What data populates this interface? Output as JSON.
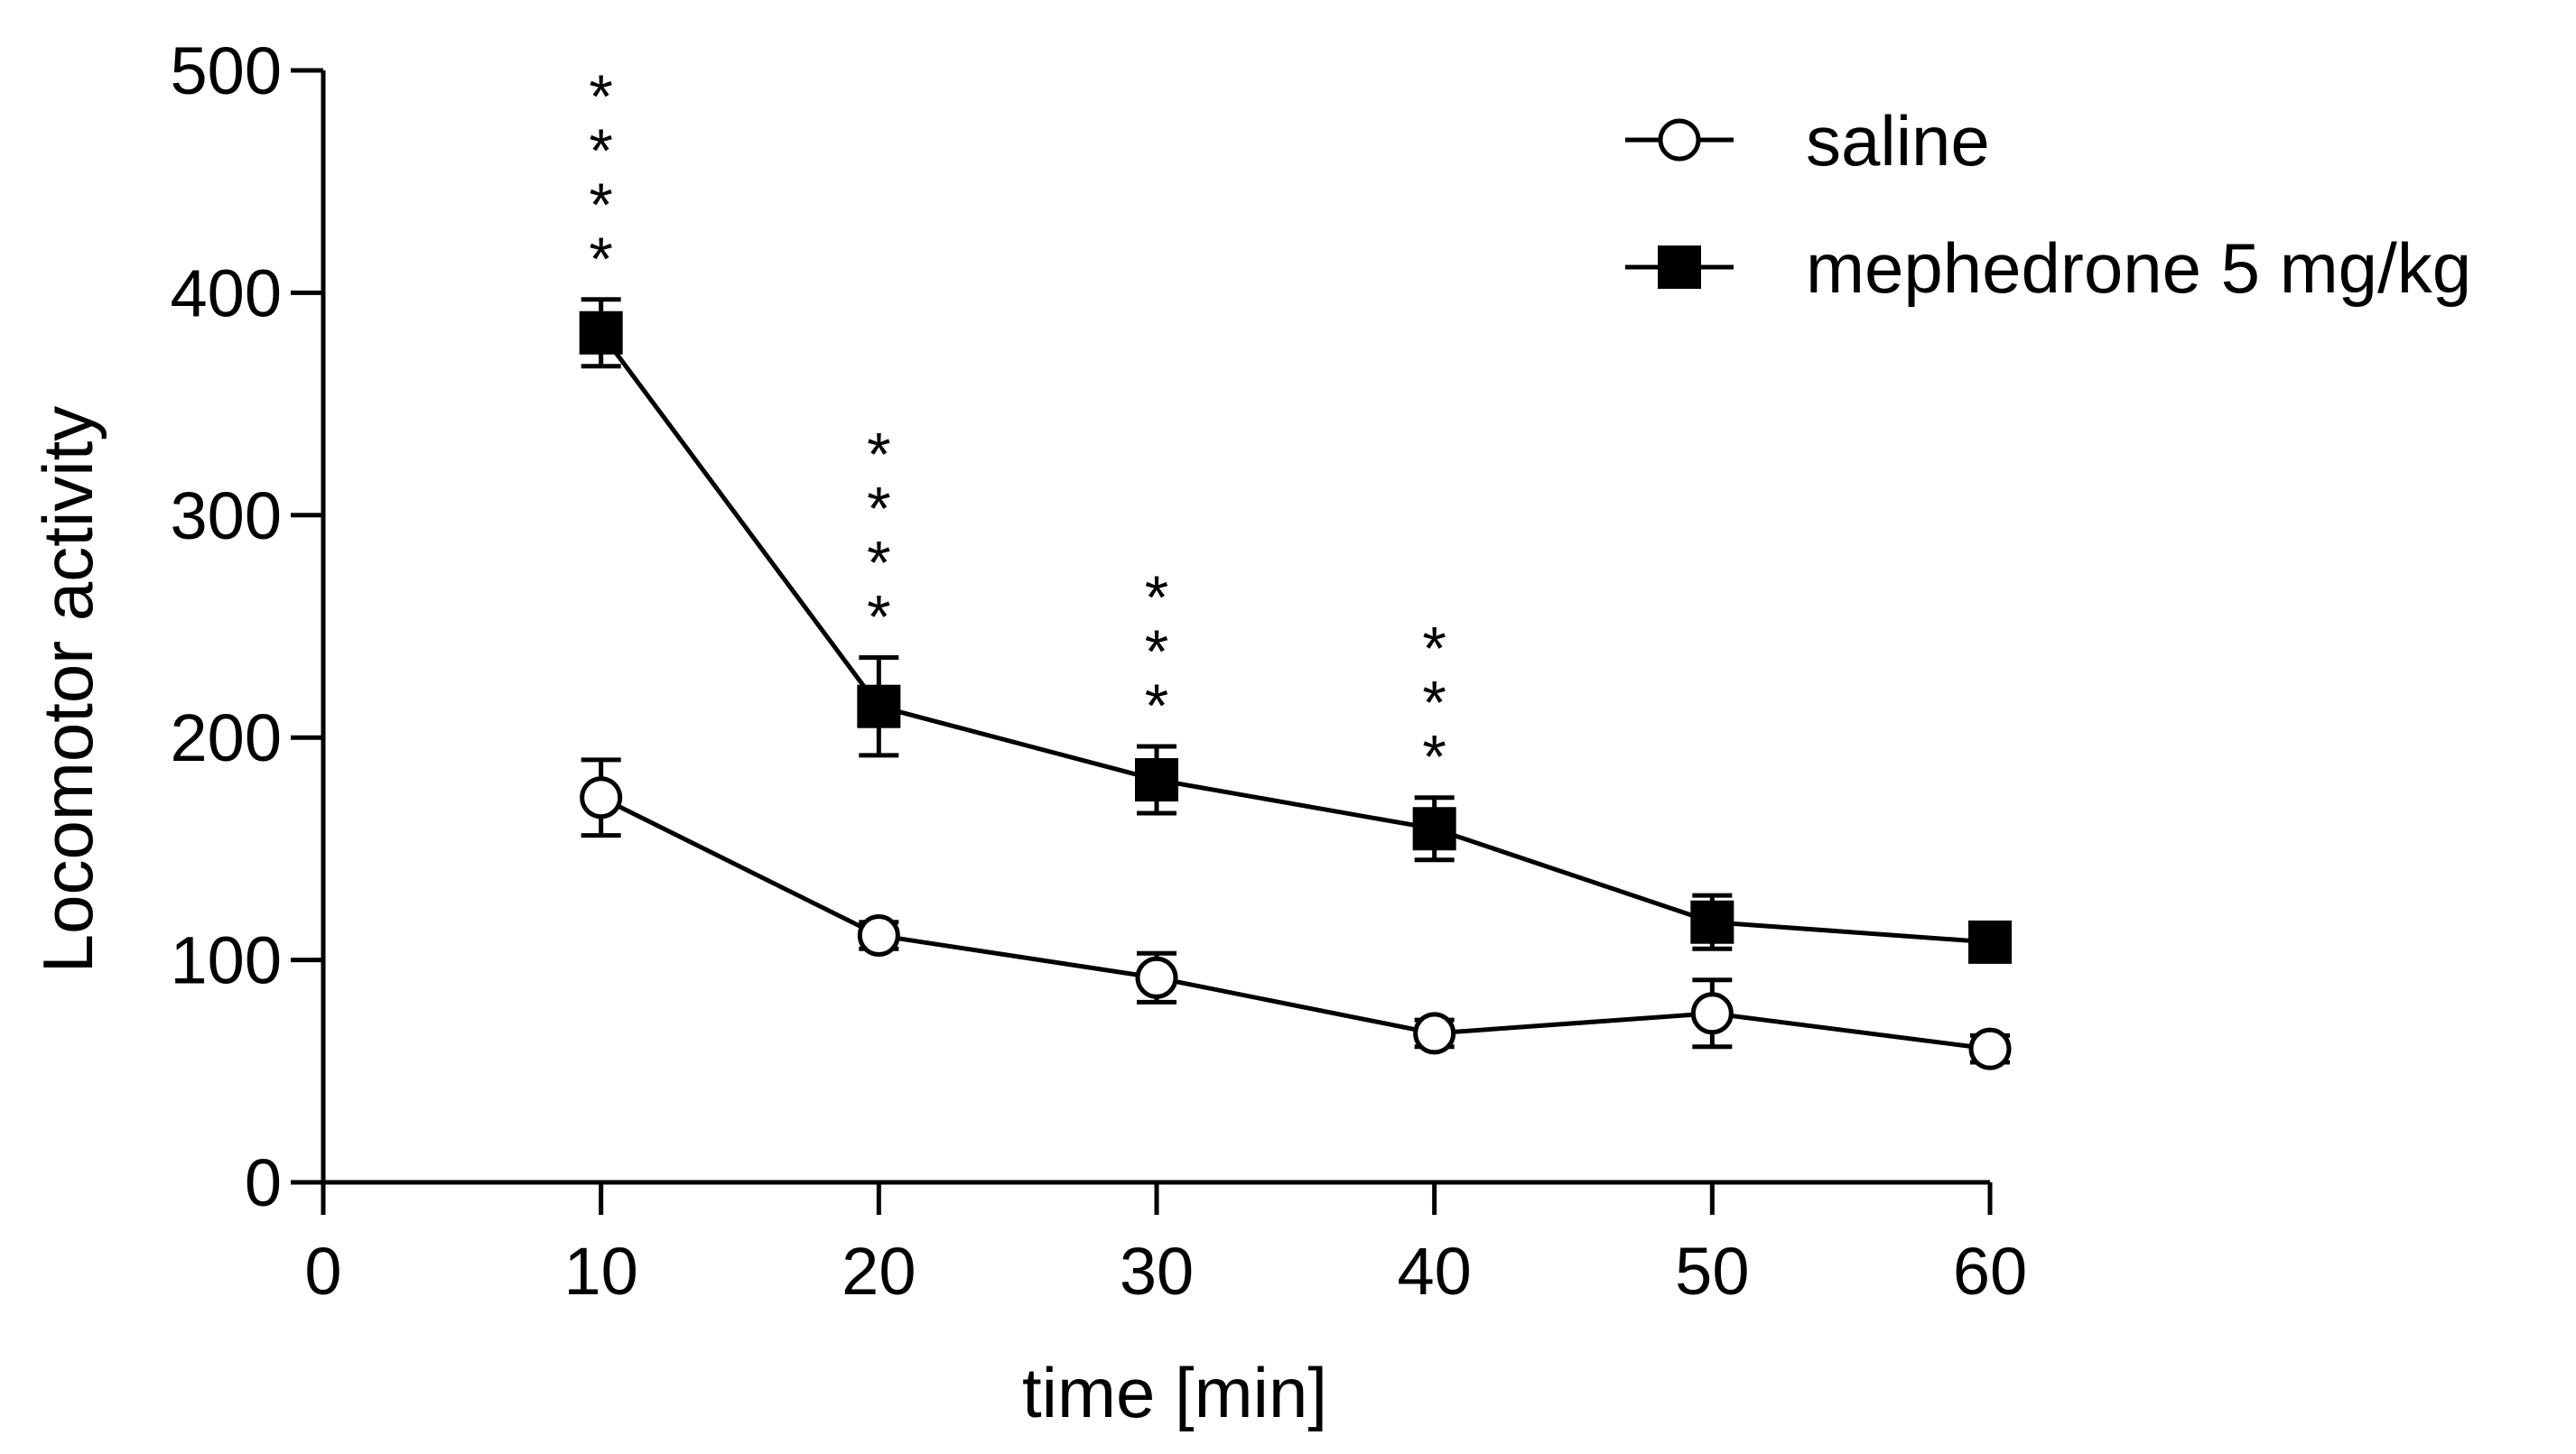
{
  "chart_data": {
    "type": "line",
    "title": "",
    "xlabel": "time [min]",
    "ylabel": "Locomotor activity",
    "xlim": [
      0,
      60
    ],
    "ylim": [
      0,
      500
    ],
    "xticks": [
      0,
      10,
      20,
      30,
      40,
      50,
      60
    ],
    "yticks": [
      0,
      100,
      200,
      300,
      400,
      500
    ],
    "grid": false,
    "legend_position": "top-right",
    "x": [
      10,
      20,
      30,
      40,
      50,
      60
    ],
    "series": [
      {
        "name": "saline",
        "marker": "open-circle",
        "values": [
          173,
          111,
          92,
          67,
          76,
          60
        ],
        "error": [
          17,
          6,
          11,
          6,
          15,
          6
        ]
      },
      {
        "name": "mephedrone 5 mg/kg",
        "marker": "filled-square",
        "values": [
          382,
          214,
          181,
          159,
          117,
          108
        ],
        "error": [
          15,
          22,
          15,
          14,
          12,
          8
        ]
      }
    ],
    "annotations": [
      {
        "x": 10,
        "text": "****"
      },
      {
        "x": 20,
        "text": "****"
      },
      {
        "x": 30,
        "text": "***"
      },
      {
        "x": 40,
        "text": "***"
      }
    ],
    "colors": {
      "ink": "#000000",
      "background": "#ffffff"
    }
  }
}
